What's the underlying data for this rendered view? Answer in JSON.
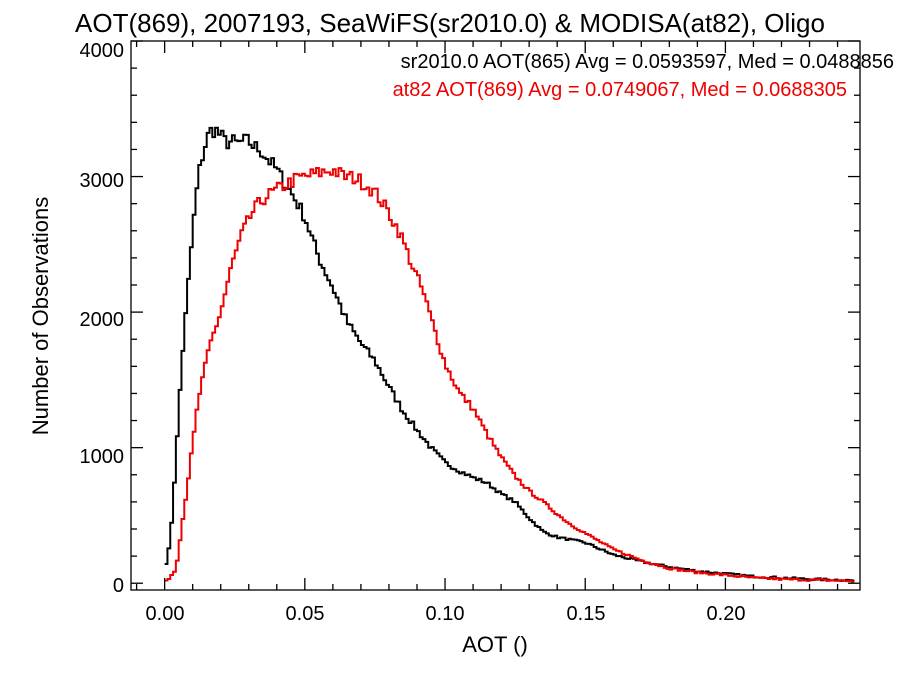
{
  "chart_data": {
    "type": "line",
    "title": "AOT(869), 2007193, SeaWiFS(sr2010.0) & MODISA(at82), Oligo",
    "xlabel": "AOT ()",
    "ylabel": "Number of Observations",
    "xlim": [
      -0.012,
      0.248
    ],
    "ylim": [
      -50,
      4000
    ],
    "xticks": [
      "0.00",
      "0.05",
      "0.10",
      "0.15",
      "0.20"
    ],
    "yticks": [
      "0",
      "1000",
      "2000",
      "3000",
      "4000"
    ],
    "grid": false,
    "legend_placement": "top-right",
    "series": [
      {
        "name": "sr2010.0 AOT(865) Avg = 0.0593597, Med = 0.0488856",
        "color": "#000000",
        "x": [
          0.0,
          0.002,
          0.004,
          0.006,
          0.008,
          0.01,
          0.012,
          0.014,
          0.016,
          0.018,
          0.02,
          0.022,
          0.024,
          0.026,
          0.028,
          0.03,
          0.032,
          0.034,
          0.036,
          0.038,
          0.04,
          0.042,
          0.044,
          0.046,
          0.048,
          0.05,
          0.055,
          0.06,
          0.065,
          0.07,
          0.075,
          0.08,
          0.085,
          0.09,
          0.095,
          0.1,
          0.105,
          0.11,
          0.115,
          0.12,
          0.125,
          0.13,
          0.135,
          0.14,
          0.15,
          0.16,
          0.17,
          0.18,
          0.19,
          0.2,
          0.21,
          0.22,
          0.23,
          0.24,
          0.246
        ],
        "y": [
          100,
          300,
          900,
          1600,
          2100,
          2600,
          3000,
          3200,
          3330,
          3350,
          3300,
          3250,
          3260,
          3240,
          3260,
          3260,
          3220,
          3200,
          3150,
          3100,
          3050,
          2980,
          2920,
          2850,
          2780,
          2700,
          2400,
          2180,
          1930,
          1770,
          1640,
          1450,
          1270,
          1130,
          1000,
          890,
          830,
          780,
          740,
          660,
          600,
          480,
          380,
          340,
          300,
          210,
          160,
          120,
          90,
          70,
          50,
          40,
          30,
          25,
          20
        ]
      },
      {
        "name": "at82 AOT(869) Avg = 0.0749067, Med = 0.0688305",
        "color": "#ee0000",
        "x": [
          0.0,
          0.004,
          0.008,
          0.012,
          0.016,
          0.02,
          0.024,
          0.028,
          0.032,
          0.036,
          0.04,
          0.044,
          0.048,
          0.052,
          0.056,
          0.06,
          0.064,
          0.068,
          0.072,
          0.076,
          0.08,
          0.084,
          0.088,
          0.092,
          0.096,
          0.1,
          0.105,
          0.11,
          0.115,
          0.12,
          0.125,
          0.13,
          0.135,
          0.14,
          0.145,
          0.15,
          0.16,
          0.17,
          0.18,
          0.19,
          0.2,
          0.21,
          0.22,
          0.23,
          0.24,
          0.246
        ],
        "y": [
          0,
          100,
          700,
          1350,
          1750,
          2000,
          2350,
          2600,
          2760,
          2850,
          2900,
          2950,
          2990,
          3010,
          3030,
          3050,
          3000,
          2990,
          2940,
          2860,
          2730,
          2580,
          2360,
          2160,
          1890,
          1620,
          1410,
          1290,
          1100,
          930,
          790,
          680,
          600,
          510,
          430,
          370,
          250,
          170,
          110,
          80,
          60,
          40,
          30,
          25,
          20,
          15
        ]
      }
    ]
  }
}
